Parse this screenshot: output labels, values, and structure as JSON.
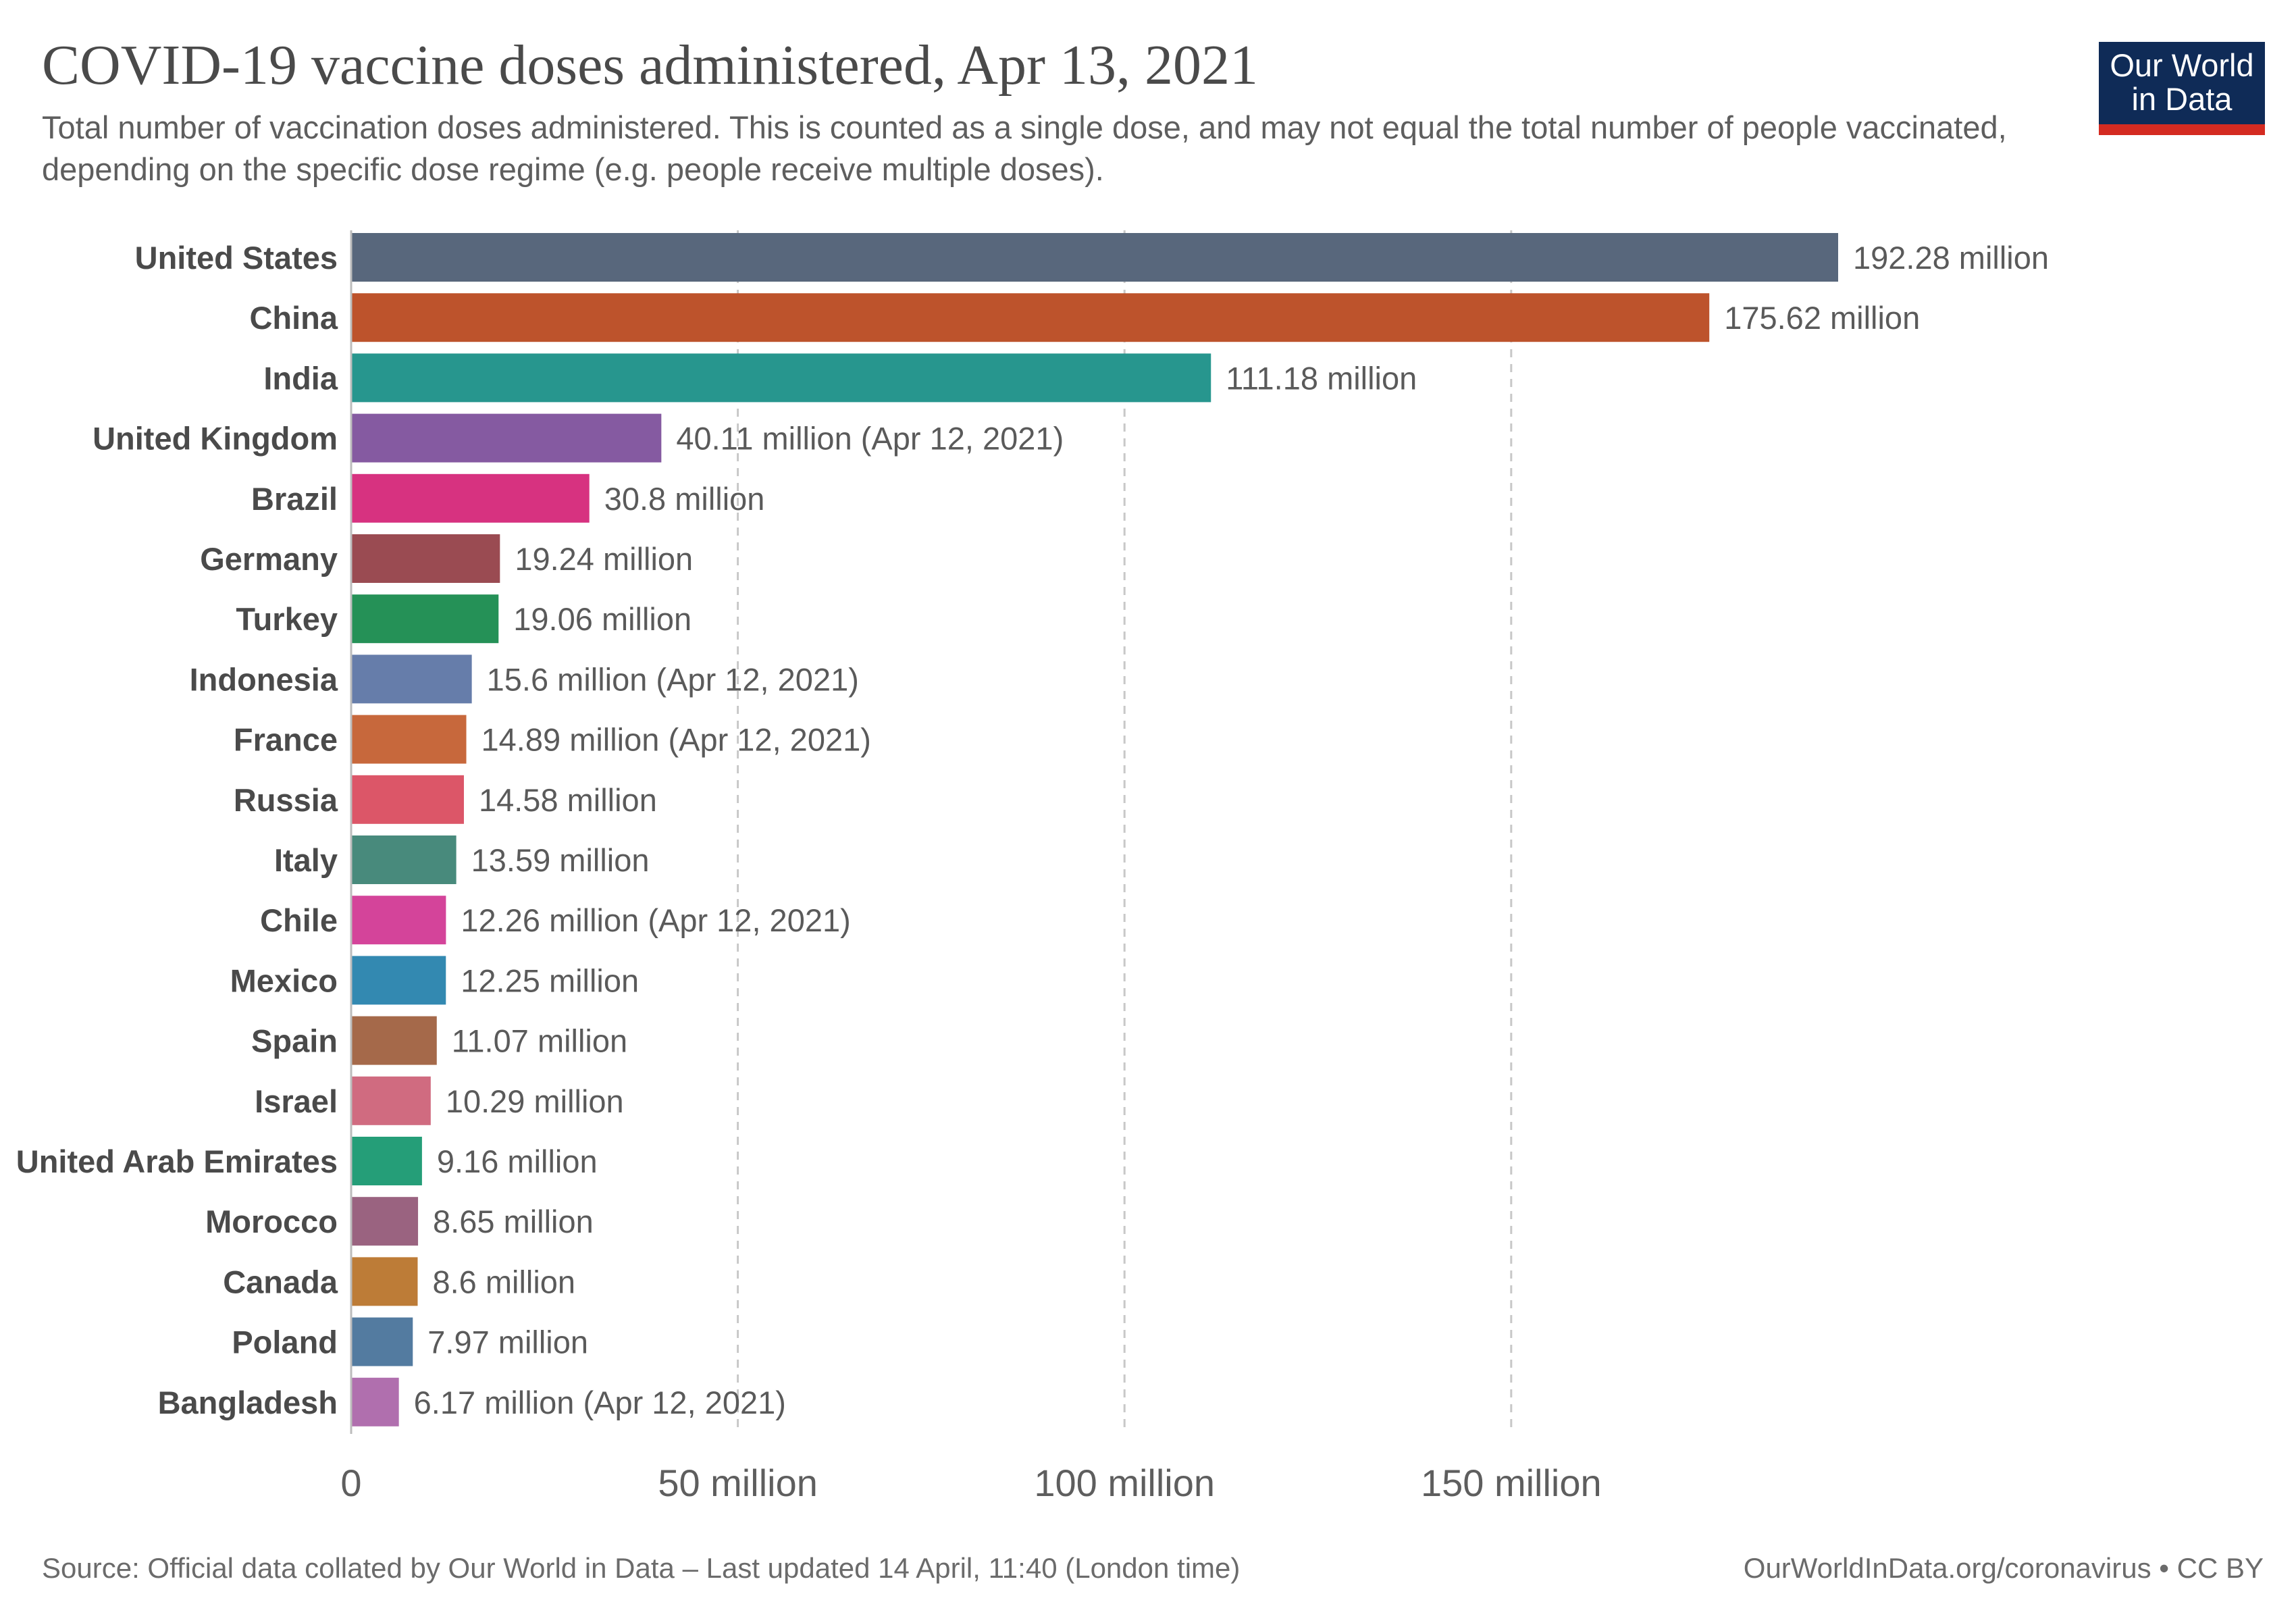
{
  "header": {
    "title": "COVID-19 vaccine doses administered, Apr 13, 2021",
    "subtitle": "Total number of vaccination doses administered. This is counted as a single dose, and may not equal the total number of people vaccinated, depending on the specific dose regime (e.g. people receive multiple doses)."
  },
  "logo": {
    "line1": "Our World",
    "line2": "in Data",
    "bg_color": "#0f2b57",
    "accent_color": "#d42b21"
  },
  "footer": {
    "source": "Source: Official data collated by Our World in Data – Last updated 14 April, 11:40 (London time)",
    "url": "OurWorldInData.org/coronavirus • CC BY"
  },
  "chart_data": {
    "type": "bar",
    "orientation": "horizontal",
    "xlim": [
      0,
      192.28
    ],
    "grid": true,
    "x_ticks": [
      {
        "value": 0,
        "label": "0"
      },
      {
        "value": 50,
        "label": "50 million"
      },
      {
        "value": 100,
        "label": "100 million"
      },
      {
        "value": 150,
        "label": "150 million"
      }
    ],
    "categories": [
      "United States",
      "China",
      "India",
      "United Kingdom",
      "Brazil",
      "Germany",
      "Turkey",
      "Indonesia",
      "France",
      "Russia",
      "Italy",
      "Chile",
      "Mexico",
      "Spain",
      "Israel",
      "United Arab Emirates",
      "Morocco",
      "Canada",
      "Poland",
      "Bangladesh"
    ],
    "values": [
      192.28,
      175.62,
      111.18,
      40.11,
      30.8,
      19.24,
      19.06,
      15.6,
      14.89,
      14.58,
      13.59,
      12.26,
      12.25,
      11.07,
      10.29,
      9.16,
      8.65,
      8.6,
      7.97,
      6.17
    ],
    "value_labels": [
      "192.28 million",
      "175.62 million",
      "111.18 million",
      "40.11 million (Apr 12, 2021)",
      "30.8 million",
      "19.24 million",
      "19.06 million",
      "15.6 million (Apr 12, 2021)",
      "14.89 million (Apr 12, 2021)",
      "14.58 million",
      "13.59 million",
      "12.26 million (Apr 12, 2021)",
      "12.25 million",
      "11.07 million",
      "10.29 million",
      "9.16 million",
      "8.65 million",
      "8.6 million",
      "7.97 million",
      "6.17 million (Apr 12, 2021)"
    ],
    "colors": [
      "#58677c",
      "#bd532c",
      "#27968e",
      "#855aa1",
      "#d73280",
      "#9a4b52",
      "#259157",
      "#667daa",
      "#c7683c",
      "#dc5668",
      "#488a7c",
      "#d4449a",
      "#3389b1",
      "#a5694a",
      "#d06b80",
      "#259e78",
      "#9a6380",
      "#bd7c37",
      "#537ba0",
      "#b06fae"
    ]
  }
}
